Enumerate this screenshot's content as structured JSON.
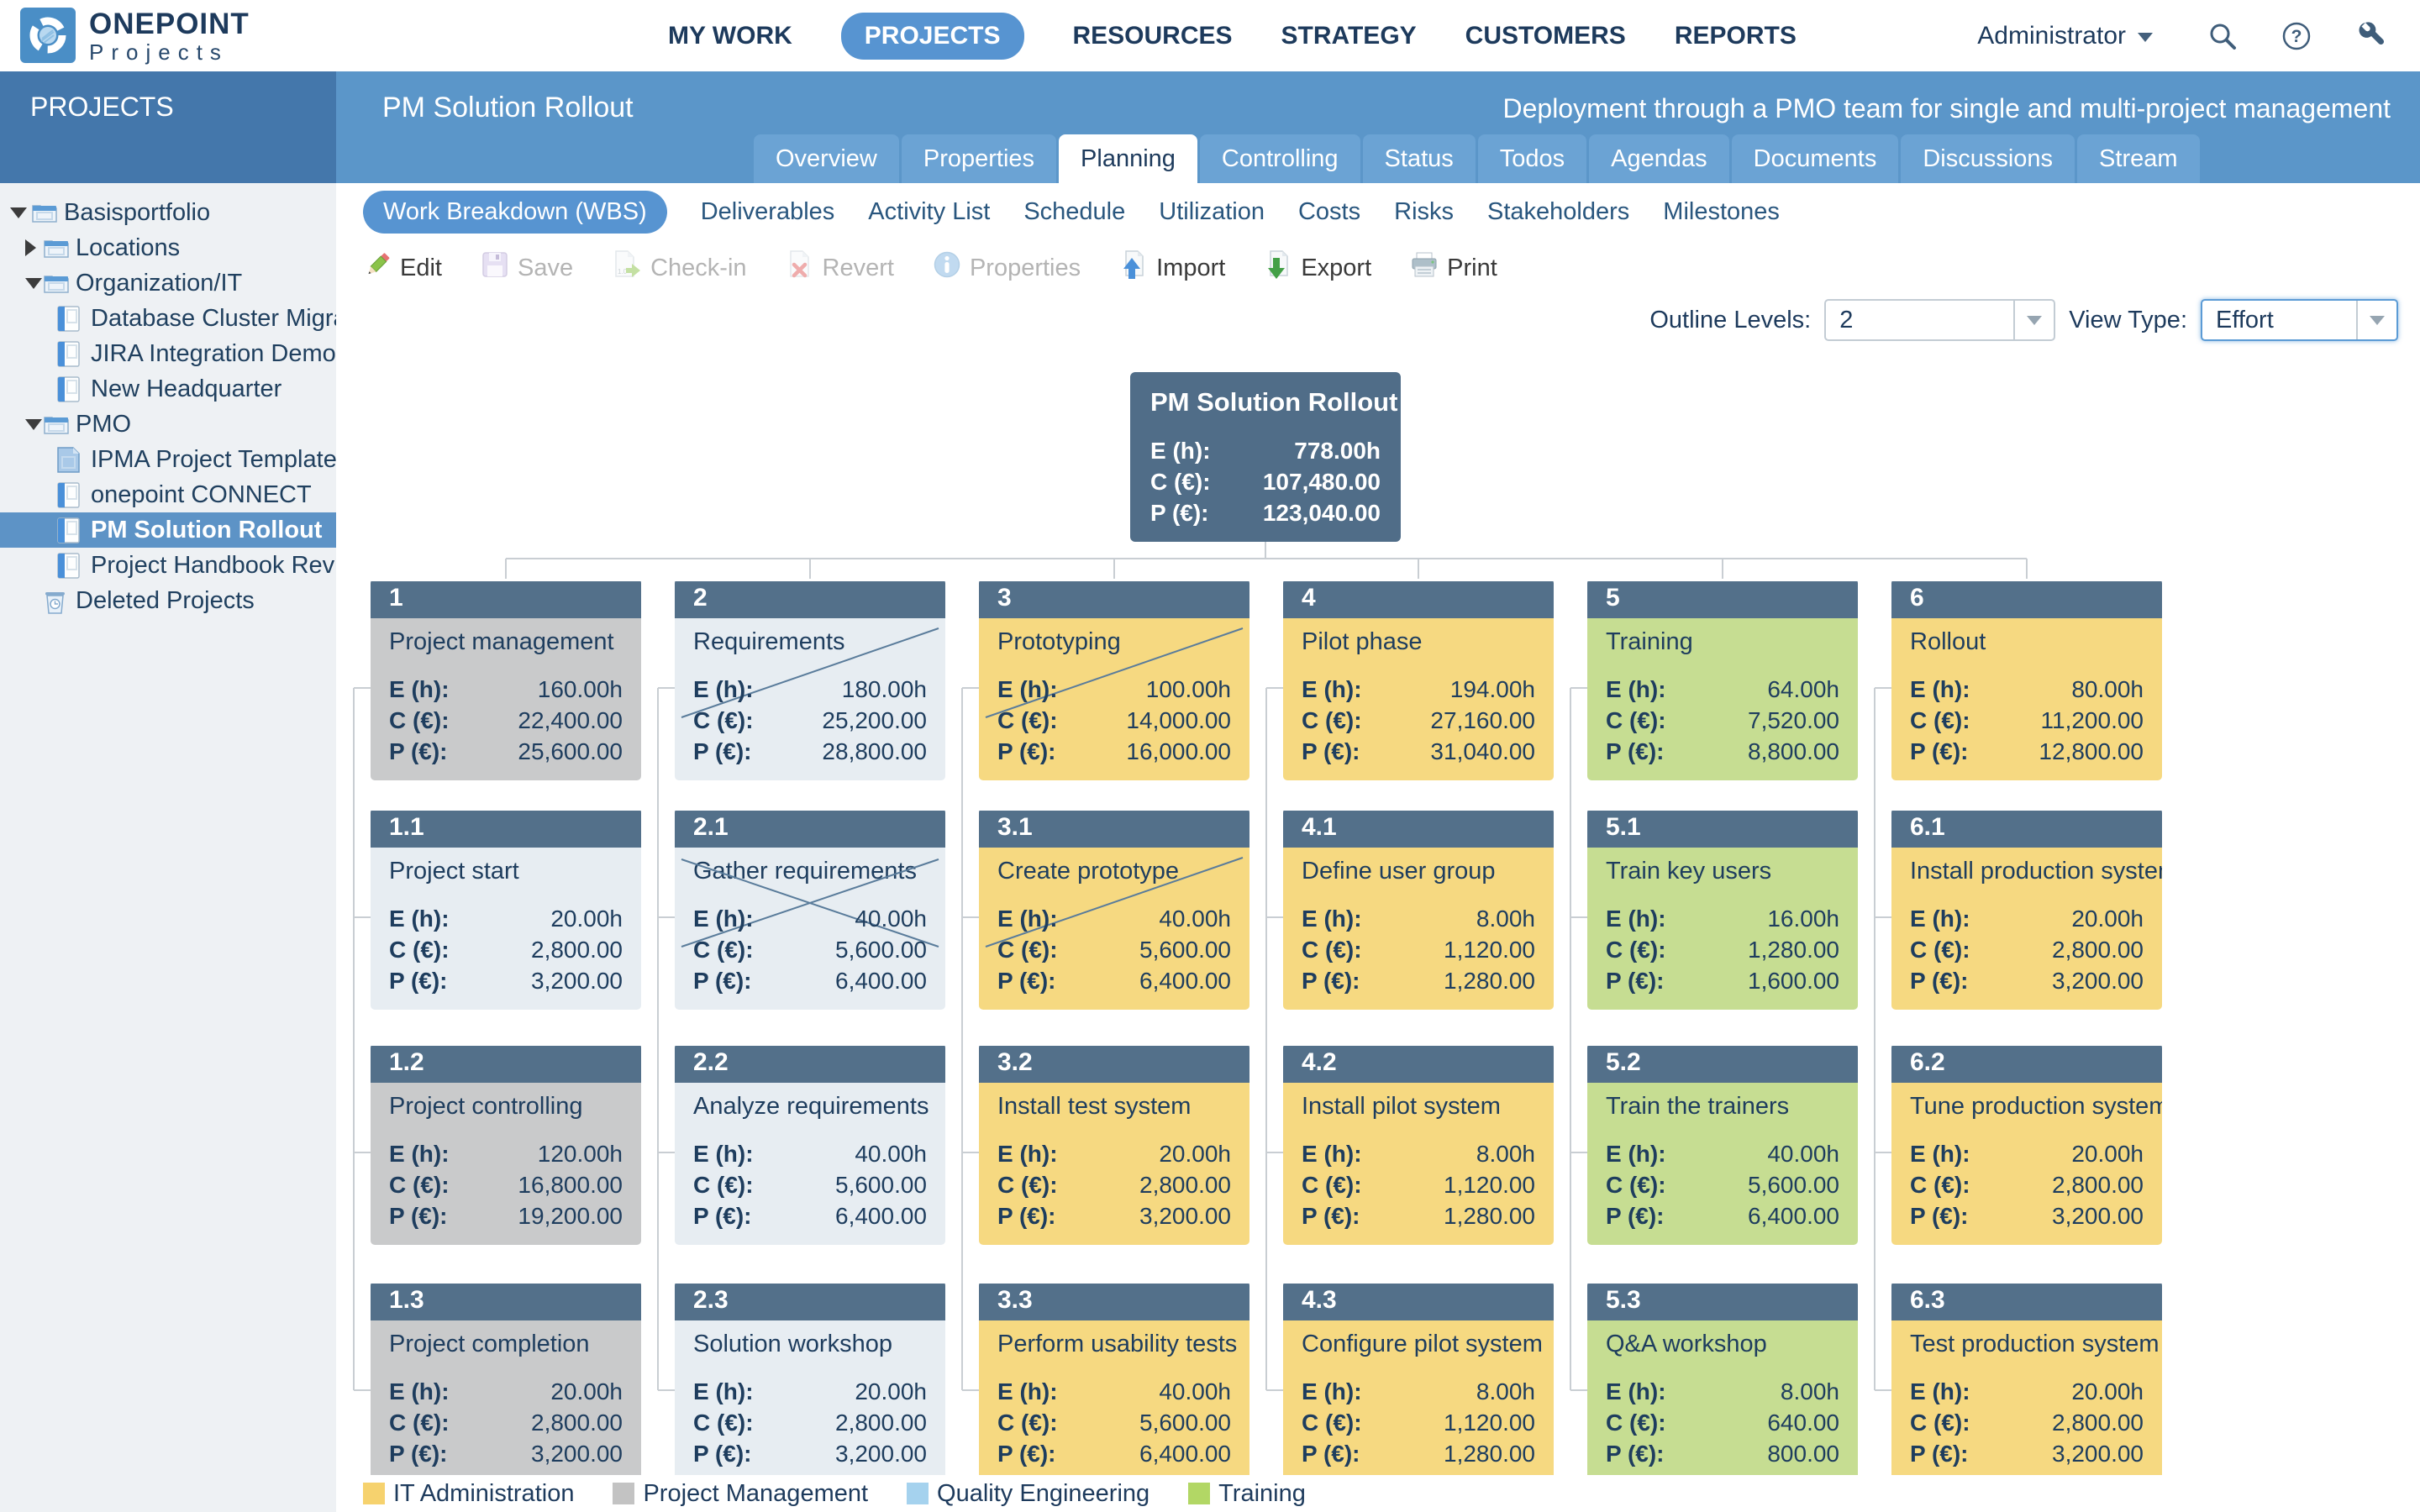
{
  "topbar": {
    "brand": {
      "line1": "ONEPOINT",
      "line2": "Projects"
    },
    "nav": [
      {
        "label": "MY WORK",
        "active": false
      },
      {
        "label": "PROJECTS",
        "active": true
      },
      {
        "label": "RESOURCES",
        "active": false
      },
      {
        "label": "STRATEGY",
        "active": false
      },
      {
        "label": "CUSTOMERS",
        "active": false
      },
      {
        "label": "REPORTS",
        "active": false
      }
    ],
    "user_menu": {
      "label": "Administrator"
    },
    "icons": [
      "search",
      "help",
      "tools"
    ]
  },
  "header": {
    "sidebar_title": "PROJECTS",
    "project_title": "PM Solution Rollout",
    "subtitle": "Deployment through a PMO team for single and multi-project management",
    "tabs": [
      {
        "label": "Overview",
        "active": false
      },
      {
        "label": "Properties",
        "active": false
      },
      {
        "label": "Planning",
        "active": true
      },
      {
        "label": "Controlling",
        "active": false
      },
      {
        "label": "Status",
        "active": false
      },
      {
        "label": "Todos",
        "active": false
      },
      {
        "label": "Agendas",
        "active": false
      },
      {
        "label": "Documents",
        "active": false
      },
      {
        "label": "Discussions",
        "active": false
      },
      {
        "label": "Stream",
        "active": false
      }
    ]
  },
  "subtabs": [
    {
      "label": "Work Breakdown (WBS)",
      "active": true
    },
    {
      "label": "Deliverables",
      "active": false
    },
    {
      "label": "Activity List",
      "active": false
    },
    {
      "label": "Schedule",
      "active": false
    },
    {
      "label": "Utilization",
      "active": false
    },
    {
      "label": "Costs",
      "active": false
    },
    {
      "label": "Risks",
      "active": false
    },
    {
      "label": "Stakeholders",
      "active": false
    },
    {
      "label": "Milestones",
      "active": false
    }
  ],
  "toolbar": [
    {
      "label": "Edit",
      "icon": "edit",
      "enabled": true
    },
    {
      "label": "Save",
      "icon": "save",
      "enabled": false
    },
    {
      "label": "Check-in",
      "icon": "checkin",
      "enabled": false
    },
    {
      "label": "Revert",
      "icon": "revert",
      "enabled": false
    },
    {
      "label": "Properties",
      "icon": "properties",
      "enabled": false
    },
    {
      "label": "Import",
      "icon": "import",
      "enabled": true
    },
    {
      "label": "Export",
      "icon": "export",
      "enabled": true
    },
    {
      "label": "Print",
      "icon": "print",
      "enabled": true
    }
  ],
  "controls": {
    "outline_label": "Outline Levels:",
    "outline_value": "2",
    "view_label": "View Type:",
    "view_value": "Effort"
  },
  "sidebar_tree": [
    {
      "label": "Basisportfolio",
      "level": 0,
      "expander": "down",
      "icon": "folder",
      "selected": false
    },
    {
      "label": "Locations",
      "level": 1,
      "expander": "right",
      "icon": "folder",
      "selected": false
    },
    {
      "label": "Organization/IT",
      "level": 1,
      "expander": "down",
      "icon": "folder",
      "selected": false
    },
    {
      "label": "Database Cluster Migration",
      "level": 2,
      "expander": "none",
      "icon": "project",
      "selected": false
    },
    {
      "label": "JIRA Integration Demo",
      "level": 2,
      "expander": "none",
      "icon": "project",
      "selected": false
    },
    {
      "label": "New Headquarter",
      "level": 2,
      "expander": "none",
      "icon": "project",
      "selected": false
    },
    {
      "label": "PMO",
      "level": 1,
      "expander": "down",
      "icon": "folder",
      "selected": false
    },
    {
      "label": "IPMA Project Template",
      "level": 2,
      "expander": "none",
      "icon": "template",
      "selected": false
    },
    {
      "label": "onepoint CONNECT",
      "level": 2,
      "expander": "none",
      "icon": "project",
      "selected": false
    },
    {
      "label": "PM Solution Rollout",
      "level": 2,
      "expander": "none",
      "icon": "project",
      "selected": true
    },
    {
      "label": "Project Handbook Revision",
      "level": 2,
      "expander": "none",
      "icon": "project",
      "selected": false
    },
    {
      "label": "Deleted Projects",
      "level": 1,
      "expander": "none",
      "icon": "trash",
      "selected": false
    }
  ],
  "wbs": {
    "metric_labels": {
      "effort": "E (h):",
      "cost": "C (€):",
      "proceeds": "P (€):"
    },
    "root": {
      "name": "PM Solution Rollout",
      "effort": "778.00h",
      "cost": "107,480.00",
      "proceeds": "123,040.00"
    },
    "cards": [
      {
        "code": "1",
        "name": "Project management",
        "col": 1,
        "row": 1,
        "category": "project_management",
        "mark": "none",
        "effort": "160.00h",
        "cost": "22,400.00",
        "proceeds": "25,600.00"
      },
      {
        "code": "1.1",
        "name": "Project start",
        "col": 1,
        "row": 2,
        "category": "none",
        "mark": "none",
        "effort": "20.00h",
        "cost": "2,800.00",
        "proceeds": "3,200.00"
      },
      {
        "code": "1.2",
        "name": "Project controlling",
        "col": 1,
        "row": 3,
        "category": "project_management",
        "mark": "none",
        "effort": "120.00h",
        "cost": "16,800.00",
        "proceeds": "19,200.00"
      },
      {
        "code": "1.3",
        "name": "Project completion",
        "col": 1,
        "row": 4,
        "category": "project_management",
        "mark": "none",
        "effort": "20.00h",
        "cost": "2,800.00",
        "proceeds": "3,200.00"
      },
      {
        "code": "2",
        "name": "Requirements",
        "col": 2,
        "row": 1,
        "category": "none",
        "mark": "slash",
        "effort": "180.00h",
        "cost": "25,200.00",
        "proceeds": "28,800.00"
      },
      {
        "code": "2.1",
        "name": "Gather requirements",
        "col": 2,
        "row": 2,
        "category": "none",
        "mark": "cross",
        "effort": "40.00h",
        "cost": "5,600.00",
        "proceeds": "6,400.00"
      },
      {
        "code": "2.2",
        "name": "Analyze requirements",
        "col": 2,
        "row": 3,
        "category": "none",
        "mark": "none",
        "effort": "40.00h",
        "cost": "5,600.00",
        "proceeds": "6,400.00"
      },
      {
        "code": "2.3",
        "name": "Solution workshop",
        "col": 2,
        "row": 4,
        "category": "none",
        "mark": "none",
        "effort": "20.00h",
        "cost": "2,800.00",
        "proceeds": "3,200.00"
      },
      {
        "code": "3",
        "name": "Prototyping",
        "col": 3,
        "row": 1,
        "category": "it_administration",
        "mark": "slash",
        "effort": "100.00h",
        "cost": "14,000.00",
        "proceeds": "16,000.00"
      },
      {
        "code": "3.1",
        "name": "Create prototype",
        "col": 3,
        "row": 2,
        "category": "it_administration",
        "mark": "slash",
        "effort": "40.00h",
        "cost": "5,600.00",
        "proceeds": "6,400.00"
      },
      {
        "code": "3.2",
        "name": "Install test system",
        "col": 3,
        "row": 3,
        "category": "it_administration",
        "mark": "none",
        "effort": "20.00h",
        "cost": "2,800.00",
        "proceeds": "3,200.00"
      },
      {
        "code": "3.3",
        "name": "Perform usability tests",
        "col": 3,
        "row": 4,
        "category": "it_administration",
        "mark": "none",
        "effort": "40.00h",
        "cost": "5,600.00",
        "proceeds": "6,400.00"
      },
      {
        "code": "4",
        "name": "Pilot phase",
        "col": 4,
        "row": 1,
        "category": "it_administration",
        "mark": "none",
        "effort": "194.00h",
        "cost": "27,160.00",
        "proceeds": "31,040.00"
      },
      {
        "code": "4.1",
        "name": "Define user group",
        "col": 4,
        "row": 2,
        "category": "it_administration",
        "mark": "none",
        "effort": "8.00h",
        "cost": "1,120.00",
        "proceeds": "1,280.00"
      },
      {
        "code": "4.2",
        "name": "Install pilot system",
        "col": 4,
        "row": 3,
        "category": "it_administration",
        "mark": "none",
        "effort": "8.00h",
        "cost": "1,120.00",
        "proceeds": "1,280.00"
      },
      {
        "code": "4.3",
        "name": "Configure pilot system",
        "col": 4,
        "row": 4,
        "category": "it_administration",
        "mark": "none",
        "effort": "8.00h",
        "cost": "1,120.00",
        "proceeds": "1,280.00"
      },
      {
        "code": "5",
        "name": "Training",
        "col": 5,
        "row": 1,
        "category": "training",
        "mark": "none",
        "effort": "64.00h",
        "cost": "7,520.00",
        "proceeds": "8,800.00"
      },
      {
        "code": "5.1",
        "name": "Train key users",
        "col": 5,
        "row": 2,
        "category": "training",
        "mark": "none",
        "effort": "16.00h",
        "cost": "1,280.00",
        "proceeds": "1,600.00"
      },
      {
        "code": "5.2",
        "name": "Train the trainers",
        "col": 5,
        "row": 3,
        "category": "training",
        "mark": "none",
        "effort": "40.00h",
        "cost": "5,600.00",
        "proceeds": "6,400.00"
      },
      {
        "code": "5.3",
        "name": "Q&A workshop",
        "col": 5,
        "row": 4,
        "category": "training",
        "mark": "none",
        "effort": "8.00h",
        "cost": "640.00",
        "proceeds": "800.00"
      },
      {
        "code": "6",
        "name": "Rollout",
        "col": 6,
        "row": 1,
        "category": "it_administration",
        "mark": "none",
        "effort": "80.00h",
        "cost": "11,200.00",
        "proceeds": "12,800.00"
      },
      {
        "code": "6.1",
        "name": "Install production system",
        "col": 6,
        "row": 2,
        "category": "it_administration",
        "mark": "none",
        "effort": "20.00h",
        "cost": "2,800.00",
        "proceeds": "3,200.00"
      },
      {
        "code": "6.2",
        "name": "Tune production system",
        "col": 6,
        "row": 3,
        "category": "it_administration",
        "mark": "none",
        "effort": "20.00h",
        "cost": "2,800.00",
        "proceeds": "3,200.00"
      },
      {
        "code": "6.3",
        "name": "Test production system",
        "col": 6,
        "row": 4,
        "category": "it_administration",
        "mark": "none",
        "effort": "20.00h",
        "cost": "2,800.00",
        "proceeds": "3,200.00"
      }
    ]
  },
  "legend": [
    {
      "label": "IT Administration",
      "color": "#f6d26e"
    },
    {
      "label": "Project Management",
      "color": "#c3c3c3"
    },
    {
      "label": "Quality Engineering",
      "color": "#a5d2ee"
    },
    {
      "label": "Training",
      "color": "#b2d765"
    }
  ],
  "colors": {
    "accent_blue": "#5794d1",
    "header_band": "#5b96c9",
    "header_band_dark": "#4477ab",
    "card_header": "#53708a",
    "root_card": "#506d88",
    "connector": "#c9ced3",
    "mark_line": "#5a7c9b",
    "category_fills": {
      "it_administration": "#f6d981",
      "project_management": "#c9cacb",
      "quality_engineering": "#a8d4ee",
      "training": "#c6dd92",
      "none": "#e7edf2"
    }
  }
}
